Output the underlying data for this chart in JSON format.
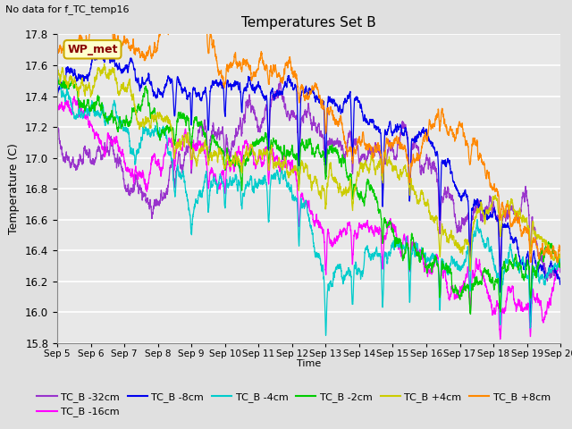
{
  "title": "Temperatures Set B",
  "subtitle": "No data for f_TC_temp16",
  "ylabel": "Temperature (C)",
  "xlabel": "Time",
  "ylim": [
    15.8,
    17.8
  ],
  "yticks": [
    15.8,
    16.0,
    16.2,
    16.4,
    16.6,
    16.8,
    17.0,
    17.2,
    17.4,
    17.6,
    17.8
  ],
  "series": [
    {
      "label": "TC_B -32cm",
      "color": "#9933CC"
    },
    {
      "label": "TC_B -16cm",
      "color": "#FF00FF"
    },
    {
      "label": "TC_B -8cm",
      "color": "#0000EE"
    },
    {
      "label": "TC_B -4cm",
      "color": "#00CCCC"
    },
    {
      "label": "TC_B -2cm",
      "color": "#00CC00"
    },
    {
      "label": "TC_B +4cm",
      "color": "#CCCC00"
    },
    {
      "label": "TC_B +8cm",
      "color": "#FF8800"
    }
  ],
  "wp_met_box_facecolor": "#FFFFCC",
  "wp_met_box_edgecolor": "#CCAA00",
  "wp_met_text_color": "#880000",
  "background_color": "#E0E0E0",
  "plot_bg_color": "#E8E8E8",
  "grid_color": "#FFFFFF",
  "n_points": 4000,
  "seed": 42
}
